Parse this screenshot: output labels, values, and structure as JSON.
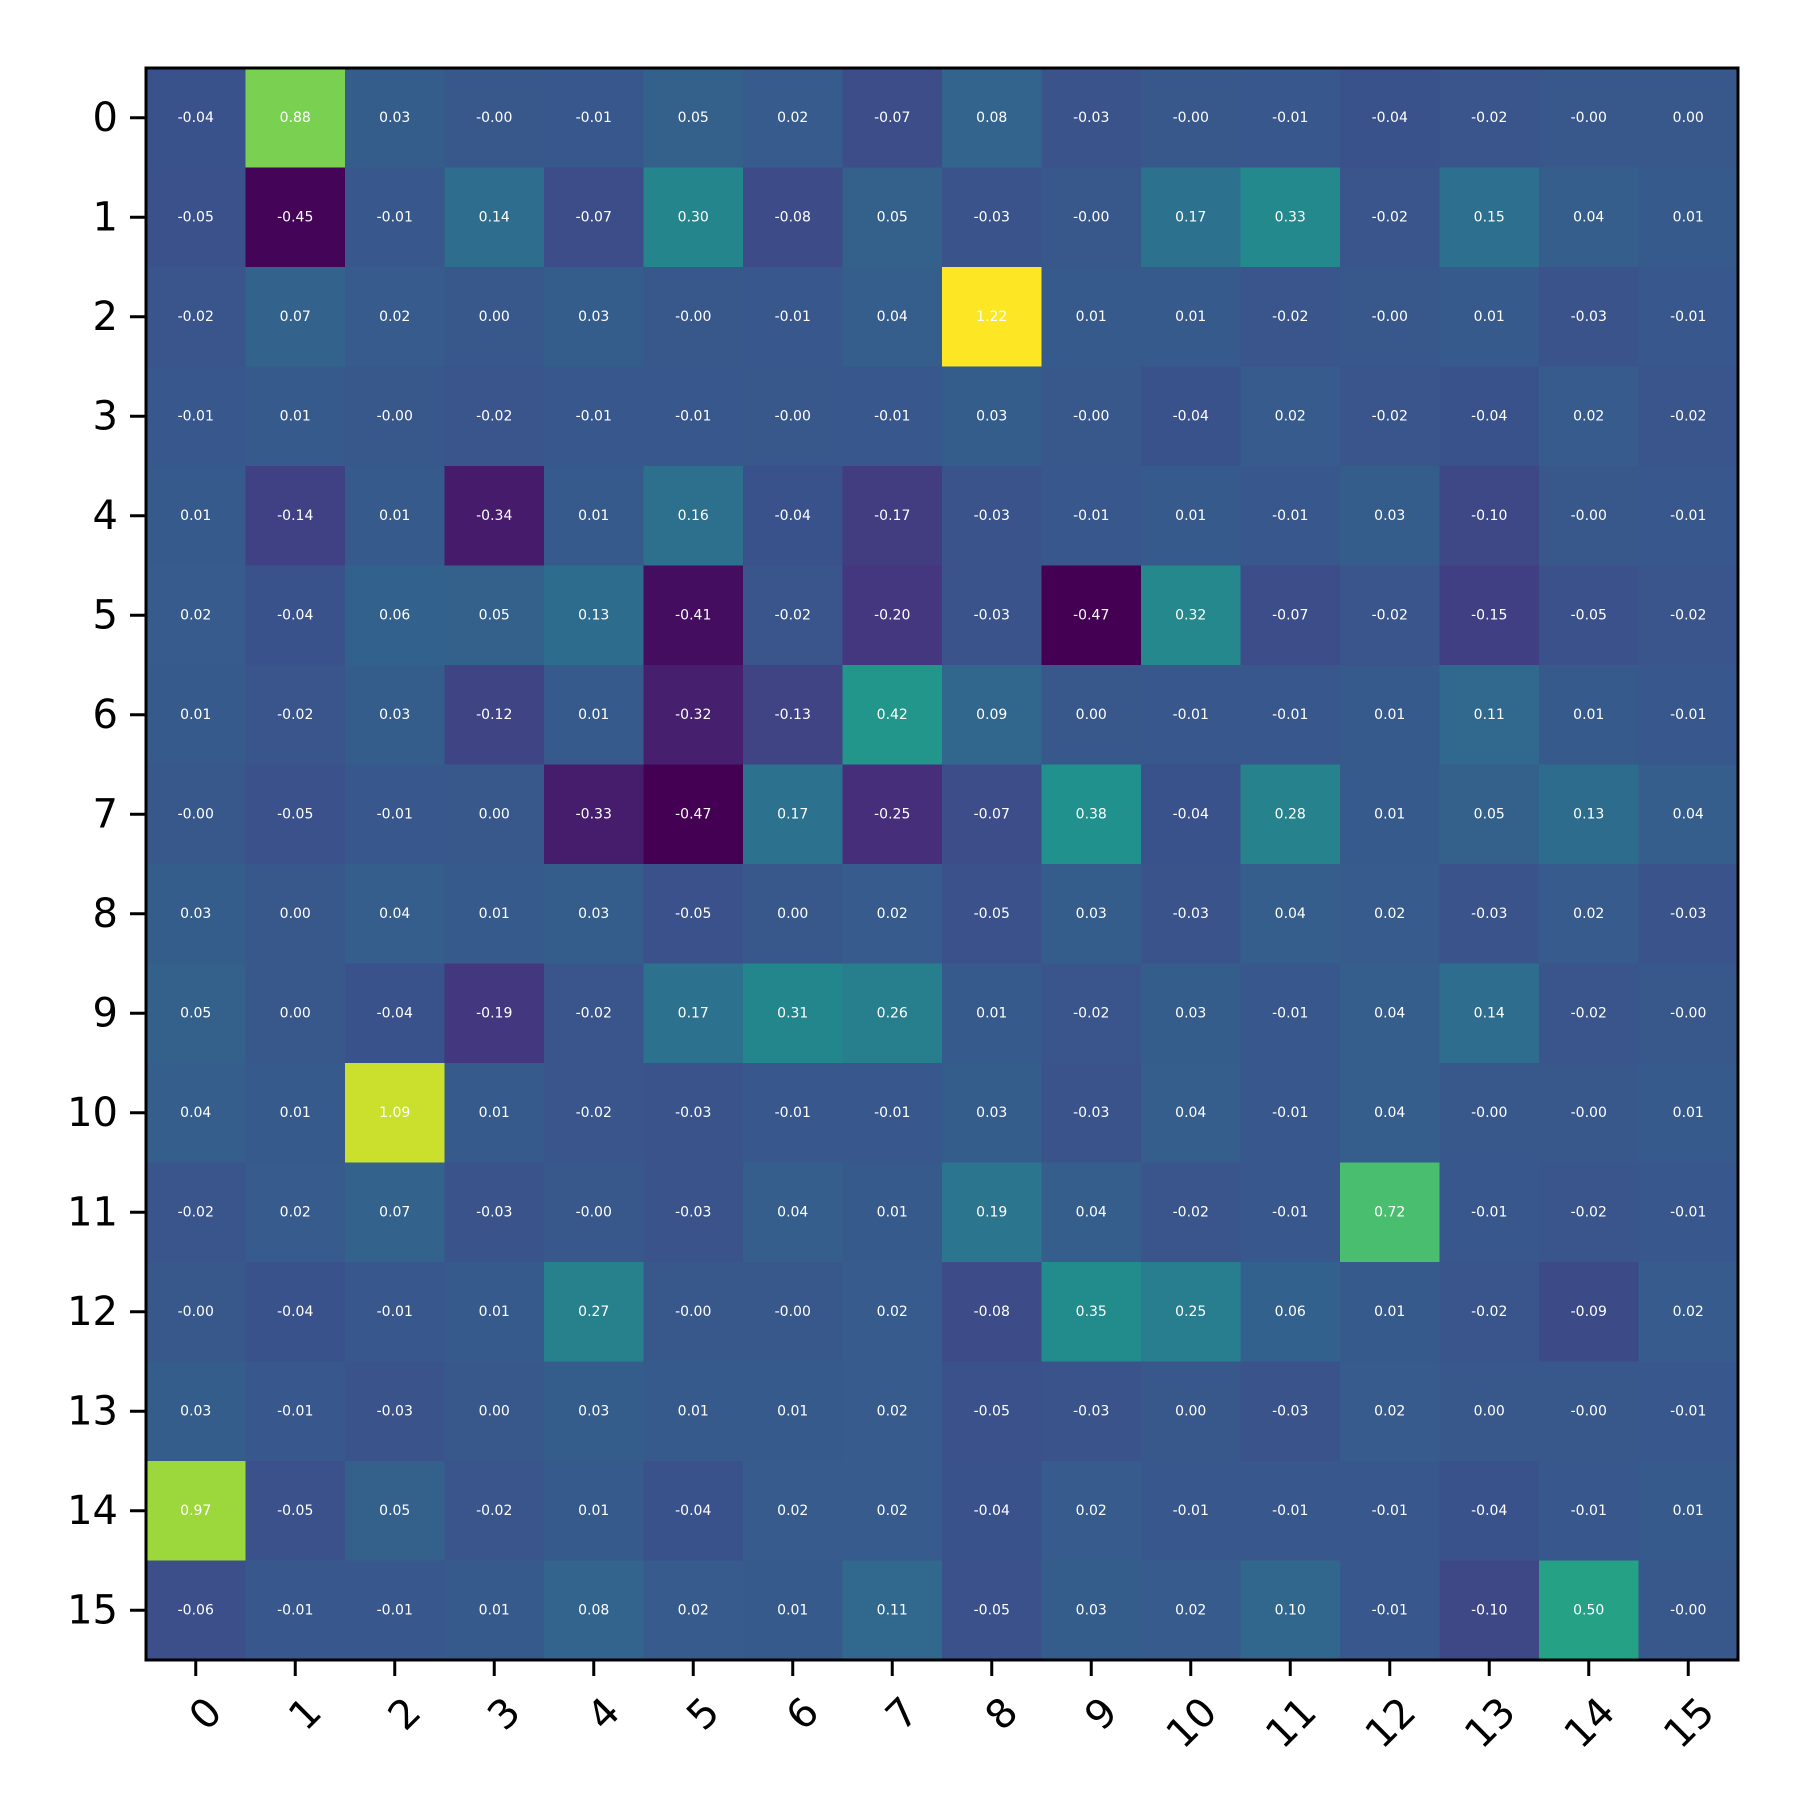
{
  "chart_data": {
    "type": "heatmap",
    "title": "",
    "xlabel": "",
    "ylabel": "",
    "x_ticks": [
      "0",
      "1",
      "2",
      "3",
      "4",
      "5",
      "6",
      "7",
      "8",
      "9",
      "10",
      "11",
      "12",
      "13",
      "14",
      "15"
    ],
    "y_ticks": [
      "0",
      "1",
      "2",
      "3",
      "4",
      "5",
      "6",
      "7",
      "8",
      "9",
      "10",
      "11",
      "12",
      "13",
      "14",
      "15"
    ],
    "colormap": "viridis",
    "vmin": -0.47,
    "vmax": 1.22,
    "grid": false,
    "legend": "none",
    "values": [
      [
        -0.04,
        0.88,
        0.03,
        -0.0,
        -0.01,
        0.05,
        0.02,
        -0.07,
        0.08,
        -0.03,
        -0.0,
        -0.01,
        -0.04,
        -0.02,
        -0.0,
        0.0
      ],
      [
        -0.05,
        -0.45,
        -0.01,
        0.14,
        -0.07,
        0.3,
        -0.08,
        0.05,
        -0.03,
        -0.0,
        0.17,
        0.33,
        -0.02,
        0.15,
        0.04,
        0.01
      ],
      [
        -0.02,
        0.07,
        0.02,
        0.0,
        0.03,
        -0.0,
        -0.01,
        0.04,
        1.22,
        0.01,
        0.01,
        -0.02,
        -0.0,
        0.01,
        -0.03,
        -0.01
      ],
      [
        -0.01,
        0.01,
        -0.0,
        -0.02,
        -0.01,
        -0.01,
        -0.0,
        -0.01,
        0.03,
        -0.0,
        -0.04,
        0.02,
        -0.02,
        -0.04,
        0.02,
        -0.02
      ],
      [
        0.01,
        -0.14,
        0.01,
        -0.34,
        0.01,
        0.16,
        -0.04,
        -0.17,
        -0.03,
        -0.01,
        0.01,
        -0.01,
        0.03,
        -0.1,
        -0.0,
        -0.01
      ],
      [
        0.02,
        -0.04,
        0.06,
        0.05,
        0.13,
        -0.41,
        -0.02,
        -0.2,
        -0.03,
        -0.47,
        0.32,
        -0.07,
        -0.02,
        -0.15,
        -0.05,
        -0.02
      ],
      [
        0.01,
        -0.02,
        0.03,
        -0.12,
        0.01,
        -0.32,
        -0.13,
        0.42,
        0.09,
        0.0,
        -0.01,
        -0.01,
        0.01,
        0.11,
        0.01,
        -0.01
      ],
      [
        -0.0,
        -0.05,
        -0.01,
        0.0,
        -0.33,
        -0.47,
        0.17,
        -0.25,
        -0.07,
        0.38,
        -0.04,
        0.28,
        0.01,
        0.05,
        0.13,
        0.04
      ],
      [
        0.03,
        0.0,
        0.04,
        0.01,
        0.03,
        -0.05,
        0.0,
        0.02,
        -0.05,
        0.03,
        -0.03,
        0.04,
        0.02,
        -0.03,
        0.02,
        -0.03
      ],
      [
        0.05,
        0.0,
        -0.04,
        -0.19,
        -0.02,
        0.17,
        0.31,
        0.26,
        0.01,
        -0.02,
        0.03,
        -0.01,
        0.04,
        0.14,
        -0.02,
        -0.0
      ],
      [
        0.04,
        0.01,
        1.09,
        0.01,
        -0.02,
        -0.03,
        -0.01,
        -0.01,
        0.03,
        -0.03,
        0.04,
        -0.01,
        0.04,
        -0.0,
        -0.0,
        0.01
      ],
      [
        -0.02,
        0.02,
        0.07,
        -0.03,
        -0.0,
        -0.03,
        0.04,
        0.01,
        0.19,
        0.04,
        -0.02,
        -0.01,
        0.72,
        -0.01,
        -0.02,
        -0.01
      ],
      [
        -0.0,
        -0.04,
        -0.01,
        0.01,
        0.27,
        -0.0,
        -0.0,
        0.02,
        -0.08,
        0.35,
        0.25,
        0.06,
        0.01,
        -0.02,
        -0.09,
        0.02
      ],
      [
        0.03,
        -0.01,
        -0.03,
        0.0,
        0.03,
        0.01,
        0.01,
        0.02,
        -0.05,
        -0.03,
        0.0,
        -0.03,
        0.02,
        0.0,
        -0.0,
        -0.01
      ],
      [
        0.97,
        -0.05,
        0.05,
        -0.02,
        0.01,
        -0.04,
        0.02,
        0.02,
        -0.04,
        0.02,
        -0.01,
        -0.01,
        -0.01,
        -0.04,
        -0.01,
        0.01
      ],
      [
        -0.06,
        -0.01,
        -0.01,
        0.01,
        0.08,
        0.02,
        0.01,
        0.11,
        -0.05,
        0.03,
        0.02,
        0.1,
        -0.01,
        -0.1,
        0.5,
        -0.0
      ]
    ],
    "labels": [
      [
        "-0.04",
        "0.88",
        "0.03",
        "-0.00",
        "-0.01",
        "0.05",
        "0.02",
        "-0.07",
        "0.08",
        "-0.03",
        "-0.00",
        "-0.01",
        "-0.04",
        "-0.02",
        "-0.00",
        "0.00"
      ],
      [
        "-0.05",
        "-0.45",
        "-0.01",
        "0.14",
        "-0.07",
        "0.30",
        "-0.08",
        "0.05",
        "-0.03",
        "-0.00",
        "0.17",
        "0.33",
        "-0.02",
        "0.15",
        "0.04",
        "0.01"
      ],
      [
        "-0.02",
        "0.07",
        "0.02",
        "0.00",
        "0.03",
        "-0.00",
        "-0.01",
        "0.04",
        "1.22",
        "0.01",
        "0.01",
        "-0.02",
        "-0.00",
        "0.01",
        "-0.03",
        "-0.01"
      ],
      [
        "-0.01",
        "0.01",
        "-0.00",
        "-0.02",
        "-0.01",
        "-0.01",
        "-0.00",
        "-0.01",
        "0.03",
        "-0.00",
        "-0.04",
        "0.02",
        "-0.02",
        "-0.04",
        "0.02",
        "-0.02"
      ],
      [
        "0.01",
        "-0.14",
        "0.01",
        "-0.34",
        "0.01",
        "0.16",
        "-0.04",
        "-0.17",
        "-0.03",
        "-0.01",
        "0.01",
        "-0.01",
        "0.03",
        "-0.10",
        "-0.00",
        "-0.01"
      ],
      [
        "0.02",
        "-0.04",
        "0.06",
        "0.05",
        "0.13",
        "-0.41",
        "-0.02",
        "-0.20",
        "-0.03",
        "-0.47",
        "0.32",
        "-0.07",
        "-0.02",
        "-0.15",
        "-0.05",
        "-0.02"
      ],
      [
        "0.01",
        "-0.02",
        "0.03",
        "-0.12",
        "0.01",
        "-0.32",
        "-0.13",
        "0.42",
        "0.09",
        "0.00",
        "-0.01",
        "-0.01",
        "0.01",
        "0.11",
        "0.01",
        "-0.01"
      ],
      [
        "-0.00",
        "-0.05",
        "-0.01",
        "0.00",
        "-0.33",
        "-0.47",
        "0.17",
        "-0.25",
        "-0.07",
        "0.38",
        "-0.04",
        "0.28",
        "0.01",
        "0.05",
        "0.13",
        "0.04"
      ],
      [
        "0.03",
        "0.00",
        "0.04",
        "0.01",
        "0.03",
        "-0.05",
        "0.00",
        "0.02",
        "-0.05",
        "0.03",
        "-0.03",
        "0.04",
        "0.02",
        "-0.03",
        "0.02",
        "-0.03"
      ],
      [
        "0.05",
        "0.00",
        "-0.04",
        "-0.19",
        "-0.02",
        "0.17",
        "0.31",
        "0.26",
        "0.01",
        "-0.02",
        "0.03",
        "-0.01",
        "0.04",
        "0.14",
        "-0.02",
        "-0.00"
      ],
      [
        "0.04",
        "0.01",
        "1.09",
        "0.01",
        "-0.02",
        "-0.03",
        "-0.01",
        "-0.01",
        "0.03",
        "-0.03",
        "0.04",
        "-0.01",
        "0.04",
        "-0.00",
        "-0.00",
        "0.01"
      ],
      [
        "-0.02",
        "0.02",
        "0.07",
        "-0.03",
        "-0.00",
        "-0.03",
        "0.04",
        "0.01",
        "0.19",
        "0.04",
        "-0.02",
        "-0.01",
        "0.72",
        "-0.01",
        "-0.02",
        "-0.01"
      ],
      [
        "-0.00",
        "-0.04",
        "-0.01",
        "0.01",
        "0.27",
        "-0.00",
        "-0.00",
        "0.02",
        "-0.08",
        "0.35",
        "0.25",
        "0.06",
        "0.01",
        "-0.02",
        "-0.09",
        "0.02"
      ],
      [
        "0.03",
        "-0.01",
        "-0.03",
        "0.00",
        "0.03",
        "0.01",
        "0.01",
        "0.02",
        "-0.05",
        "-0.03",
        "0.00",
        "-0.03",
        "0.02",
        "0.00",
        "-0.00",
        "-0.01"
      ],
      [
        "0.97",
        "-0.05",
        "0.05",
        "-0.02",
        "0.01",
        "-0.04",
        "0.02",
        "0.02",
        "-0.04",
        "0.02",
        "-0.01",
        "-0.01",
        "-0.01",
        "-0.04",
        "-0.01",
        "0.01"
      ],
      [
        "-0.06",
        "-0.01",
        "-0.01",
        "0.01",
        "0.08",
        "0.02",
        "0.01",
        "0.11",
        "-0.05",
        "0.03",
        "0.02",
        "0.10",
        "-0.01",
        "-0.10",
        "0.50",
        "-0.00"
      ]
    ]
  }
}
